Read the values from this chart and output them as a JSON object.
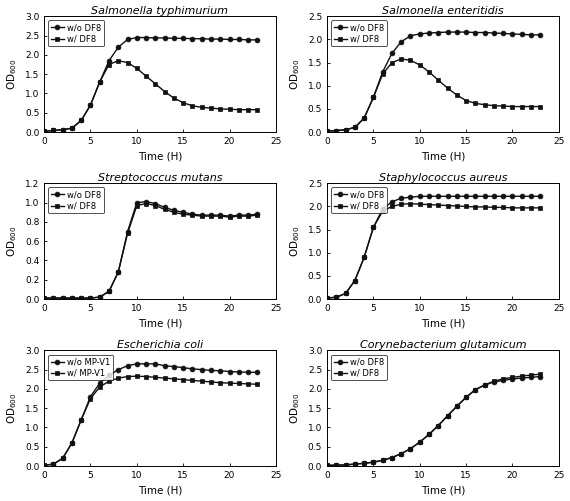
{
  "panels": [
    {
      "title": "Salmonella typhimurium",
      "ylabel": "OD$_{600}$",
      "xlabel": "Time (H)",
      "ylim": [
        0,
        3
      ],
      "yticks": [
        0,
        0.5,
        1.0,
        1.5,
        2.0,
        2.5,
        3.0
      ],
      "xlim": [
        0,
        24
      ],
      "xticks": [
        0,
        5,
        10,
        15,
        20,
        25
      ],
      "legend1": "w/o DF8",
      "legend2": "w/ DF8",
      "series1_x": [
        0,
        1,
        2,
        3,
        4,
        5,
        6,
        7,
        8,
        9,
        10,
        11,
        12,
        13,
        14,
        15,
        16,
        17,
        18,
        19,
        20,
        21,
        22,
        23
      ],
      "series1_y": [
        0.02,
        0.04,
        0.06,
        0.1,
        0.3,
        0.7,
        1.3,
        1.85,
        2.2,
        2.4,
        2.45,
        2.45,
        2.44,
        2.44,
        2.43,
        2.43,
        2.42,
        2.42,
        2.41,
        2.41,
        2.4,
        2.4,
        2.39,
        2.39
      ],
      "series2_x": [
        0,
        1,
        2,
        3,
        4,
        5,
        6,
        7,
        8,
        9,
        10,
        11,
        12,
        13,
        14,
        15,
        16,
        17,
        18,
        19,
        20,
        21,
        22,
        23
      ],
      "series2_y": [
        0.02,
        0.04,
        0.06,
        0.1,
        0.3,
        0.7,
        1.3,
        1.75,
        1.85,
        1.8,
        1.65,
        1.45,
        1.25,
        1.05,
        0.88,
        0.76,
        0.68,
        0.64,
        0.62,
        0.6,
        0.59,
        0.58,
        0.58,
        0.58
      ]
    },
    {
      "title": "Salmonella enteritidis",
      "ylabel": "OD$_{600}$",
      "xlabel": "Time (H)",
      "ylim": [
        0,
        2.5
      ],
      "yticks": [
        0,
        0.5,
        1.0,
        1.5,
        2.0,
        2.5
      ],
      "xlim": [
        0,
        24
      ],
      "xticks": [
        0,
        5,
        10,
        15,
        20,
        25
      ],
      "legend1": "w/o DF8",
      "legend2": "w/ DF8",
      "series1_x": [
        0,
        1,
        2,
        3,
        4,
        5,
        6,
        7,
        8,
        9,
        10,
        11,
        12,
        13,
        14,
        15,
        16,
        17,
        18,
        19,
        20,
        21,
        22,
        23
      ],
      "series1_y": [
        0.02,
        0.03,
        0.05,
        0.1,
        0.3,
        0.75,
        1.3,
        1.7,
        1.95,
        2.08,
        2.12,
        2.14,
        2.15,
        2.16,
        2.16,
        2.16,
        2.15,
        2.15,
        2.14,
        2.13,
        2.12,
        2.11,
        2.1,
        2.1
      ],
      "series2_x": [
        0,
        1,
        2,
        3,
        4,
        5,
        6,
        7,
        8,
        9,
        10,
        11,
        12,
        13,
        14,
        15,
        16,
        17,
        18,
        19,
        20,
        21,
        22,
        23
      ],
      "series2_y": [
        0.02,
        0.03,
        0.05,
        0.1,
        0.3,
        0.75,
        1.25,
        1.5,
        1.58,
        1.55,
        1.45,
        1.3,
        1.12,
        0.95,
        0.8,
        0.68,
        0.62,
        0.59,
        0.57,
        0.56,
        0.55,
        0.55,
        0.55,
        0.55
      ]
    },
    {
      "title": "Streptococcus mutans",
      "ylabel": "OD$_{600}$",
      "xlabel": "Time (H)",
      "ylim": [
        0,
        1.2
      ],
      "yticks": [
        0,
        0.2,
        0.4,
        0.6,
        0.8,
        1.0,
        1.2
      ],
      "xlim": [
        0,
        24
      ],
      "xticks": [
        0,
        5,
        10,
        15,
        20,
        25
      ],
      "legend1": "w/o DF8",
      "legend2": "w/ DF8",
      "series1_x": [
        0,
        1,
        2,
        3,
        4,
        5,
        6,
        7,
        8,
        9,
        10,
        11,
        12,
        13,
        14,
        15,
        16,
        17,
        18,
        19,
        20,
        21,
        22,
        23
      ],
      "series1_y": [
        0.01,
        0.01,
        0.01,
        0.01,
        0.01,
        0.01,
        0.02,
        0.08,
        0.28,
        0.7,
        1.0,
        1.01,
        0.99,
        0.95,
        0.92,
        0.9,
        0.88,
        0.87,
        0.87,
        0.87,
        0.86,
        0.87,
        0.87,
        0.88
      ],
      "series2_x": [
        0,
        1,
        2,
        3,
        4,
        5,
        6,
        7,
        8,
        9,
        10,
        11,
        12,
        13,
        14,
        15,
        16,
        17,
        18,
        19,
        20,
        21,
        22,
        23
      ],
      "series2_y": [
        0.01,
        0.01,
        0.01,
        0.01,
        0.01,
        0.01,
        0.02,
        0.08,
        0.28,
        0.68,
        0.97,
        0.99,
        0.97,
        0.93,
        0.9,
        0.88,
        0.87,
        0.86,
        0.86,
        0.86,
        0.85,
        0.86,
        0.86,
        0.87
      ]
    },
    {
      "title": "Staphylococcus aureus",
      "ylabel": "OD$_{600}$",
      "xlabel": "Time (H)",
      "ylim": [
        0,
        2.5
      ],
      "yticks": [
        0,
        0.5,
        1.0,
        1.5,
        2.0,
        2.5
      ],
      "xlim": [
        0,
        24
      ],
      "xticks": [
        0,
        5,
        10,
        15,
        20,
        25
      ],
      "legend1": "w/o DF8",
      "legend2": "w/ DF8",
      "series1_x": [
        0,
        1,
        2,
        3,
        4,
        5,
        6,
        7,
        8,
        9,
        10,
        11,
        12,
        13,
        14,
        15,
        16,
        17,
        18,
        19,
        20,
        21,
        22,
        23
      ],
      "series1_y": [
        0.02,
        0.04,
        0.12,
        0.4,
        0.9,
        1.55,
        1.95,
        2.1,
        2.18,
        2.2,
        2.22,
        2.22,
        2.22,
        2.22,
        2.22,
        2.22,
        2.22,
        2.22,
        2.22,
        2.22,
        2.22,
        2.22,
        2.22,
        2.22
      ],
      "series2_x": [
        0,
        1,
        2,
        3,
        4,
        5,
        6,
        7,
        8,
        9,
        10,
        11,
        12,
        13,
        14,
        15,
        16,
        17,
        18,
        19,
        20,
        21,
        22,
        23
      ],
      "series2_y": [
        0.02,
        0.04,
        0.12,
        0.4,
        0.9,
        1.55,
        1.9,
        2.0,
        2.05,
        2.06,
        2.05,
        2.04,
        2.03,
        2.02,
        2.01,
        2.0,
        1.99,
        1.99,
        1.98,
        1.98,
        1.97,
        1.97,
        1.97,
        1.97
      ]
    },
    {
      "title": "Escherichia coli",
      "ylabel": "OD$_{600}$",
      "xlabel": "Time (H)",
      "ylim": [
        0,
        3
      ],
      "yticks": [
        0,
        0.5,
        1.0,
        1.5,
        2.0,
        2.5,
        3.0
      ],
      "xlim": [
        0,
        24
      ],
      "xticks": [
        0,
        5,
        10,
        15,
        20,
        25
      ],
      "legend1": "w/o MP-V1",
      "legend2": "w/ MP-V1",
      "series1_x": [
        0,
        1,
        2,
        3,
        4,
        5,
        6,
        7,
        8,
        9,
        10,
        11,
        12,
        13,
        14,
        15,
        16,
        17,
        18,
        19,
        20,
        21,
        22,
        23
      ],
      "series1_y": [
        0.02,
        0.05,
        0.2,
        0.6,
        1.2,
        1.8,
        2.15,
        2.35,
        2.5,
        2.6,
        2.65,
        2.65,
        2.65,
        2.6,
        2.58,
        2.55,
        2.52,
        2.5,
        2.48,
        2.47,
        2.45,
        2.44,
        2.43,
        2.43
      ],
      "series2_x": [
        0,
        1,
        2,
        3,
        4,
        5,
        6,
        7,
        8,
        9,
        10,
        11,
        12,
        13,
        14,
        15,
        16,
        17,
        18,
        19,
        20,
        21,
        22,
        23
      ],
      "series2_y": [
        0.02,
        0.05,
        0.2,
        0.6,
        1.2,
        1.75,
        2.05,
        2.2,
        2.28,
        2.32,
        2.33,
        2.32,
        2.3,
        2.28,
        2.26,
        2.24,
        2.22,
        2.2,
        2.18,
        2.16,
        2.15,
        2.14,
        2.13,
        2.12
      ]
    },
    {
      "title": "Corynebacterium glutamicum",
      "ylabel": "OD$_{600}$",
      "xlabel": "Time (H)",
      "ylim": [
        0,
        3
      ],
      "yticks": [
        0,
        0.5,
        1.0,
        1.5,
        2.0,
        2.5,
        3.0
      ],
      "xlim": [
        0,
        24
      ],
      "xticks": [
        0,
        5,
        10,
        15,
        20,
        25
      ],
      "legend1": "w/o DF8",
      "legend2": "w/ DF8",
      "series1_x": [
        0,
        1,
        2,
        3,
        4,
        5,
        6,
        7,
        8,
        9,
        10,
        11,
        12,
        13,
        14,
        15,
        16,
        17,
        18,
        19,
        20,
        21,
        22,
        23
      ],
      "series1_y": [
        0.02,
        0.02,
        0.03,
        0.05,
        0.07,
        0.1,
        0.15,
        0.22,
        0.32,
        0.45,
        0.62,
        0.82,
        1.05,
        1.3,
        1.55,
        1.78,
        1.98,
        2.1,
        2.18,
        2.22,
        2.26,
        2.28,
        2.3,
        2.32
      ],
      "series2_x": [
        0,
        1,
        2,
        3,
        4,
        5,
        6,
        7,
        8,
        9,
        10,
        11,
        12,
        13,
        14,
        15,
        16,
        17,
        18,
        19,
        20,
        21,
        22,
        23
      ],
      "series2_y": [
        0.02,
        0.02,
        0.03,
        0.05,
        0.07,
        0.1,
        0.15,
        0.22,
        0.32,
        0.45,
        0.62,
        0.82,
        1.05,
        1.3,
        1.55,
        1.78,
        1.98,
        2.1,
        2.2,
        2.26,
        2.3,
        2.33,
        2.36,
        2.38
      ]
    }
  ],
  "marker1": "o",
  "marker2": "s",
  "markersize": 3.5,
  "linewidth": 1.0,
  "color": "#111111",
  "figsize": [
    5.7,
    5.01
  ],
  "dpi": 100
}
